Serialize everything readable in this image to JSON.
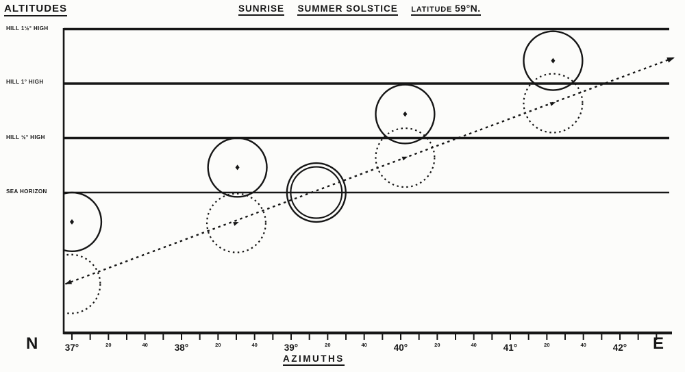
{
  "header": {
    "altitudes_label": "ALTITUDES",
    "title_sunrise": "SUNRISE",
    "title_solstice": "SUMMER SOLSTICE",
    "latitude_label": "LATITUDE",
    "latitude_value": "59°N."
  },
  "footer": {
    "azimuths_label": "AZIMUTHS",
    "north_label": "N",
    "east_label": "E"
  },
  "chart_data": {
    "type": "scatter",
    "title": "SUNRISE SUMMER SOLSTICE",
    "subtitle": "LATITUDE 59°N.",
    "xlabel": "AZIMUTHS",
    "ylabel": "ALTITUDES",
    "x_axis": {
      "start_label": "N",
      "end_label": "E",
      "major_ticks_deg": [
        37,
        38,
        39,
        40,
        41,
        42
      ],
      "major_tick_labels": [
        "37°",
        "38°",
        "39°",
        "40°",
        "41°",
        "42°"
      ],
      "minor_tick_step_arcmin": 10,
      "labeled_minor_arcmin": [
        20,
        40
      ],
      "minor_tick_labels": [
        "20",
        "40"
      ],
      "range_deg": [
        36.92,
        42.45
      ]
    },
    "y_levels": [
      {
        "label": "HILL 1½° HIGH",
        "altitude_deg": 1.5
      },
      {
        "label": "HILL 1° HIGH",
        "altitude_deg": 1.0
      },
      {
        "label": "HILL ½° HIGH",
        "altitude_deg": 0.5
      },
      {
        "label": "SEA HORIZON",
        "altitude_deg": 0.0
      }
    ],
    "sun_radius_deg": 0.27,
    "sun_disks": [
      {
        "azimuth_deg": 37.0,
        "altitude_deg": -0.27,
        "style": "solid",
        "marker": "dot"
      },
      {
        "azimuth_deg": 36.99,
        "altitude_deg": -0.84,
        "style": "dotted",
        "marker": "none"
      },
      {
        "azimuth_deg": 38.51,
        "altitude_deg": 0.23,
        "style": "solid",
        "marker": "dot"
      },
      {
        "azimuth_deg": 38.5,
        "altitude_deg": -0.28,
        "style": "dotted",
        "marker": "arrow"
      },
      {
        "azimuth_deg": 39.23,
        "altitude_deg": 0.0,
        "style": "double",
        "marker": "none"
      },
      {
        "azimuth_deg": 40.04,
        "altitude_deg": 0.72,
        "style": "solid",
        "marker": "dot"
      },
      {
        "azimuth_deg": 40.04,
        "altitude_deg": 0.32,
        "style": "dotted",
        "marker": "arrow"
      },
      {
        "azimuth_deg": 41.39,
        "altitude_deg": 1.21,
        "style": "solid",
        "marker": "dot"
      },
      {
        "azimuth_deg": 41.39,
        "altitude_deg": 0.82,
        "style": "dotted",
        "marker": "arrow"
      }
    ],
    "sun_path": {
      "style": "dashed, arrowheads both ends",
      "from": {
        "azimuth_deg": 36.94,
        "altitude_deg": -0.84
      },
      "to": {
        "azimuth_deg": 42.5,
        "altitude_deg": 1.24
      }
    }
  }
}
